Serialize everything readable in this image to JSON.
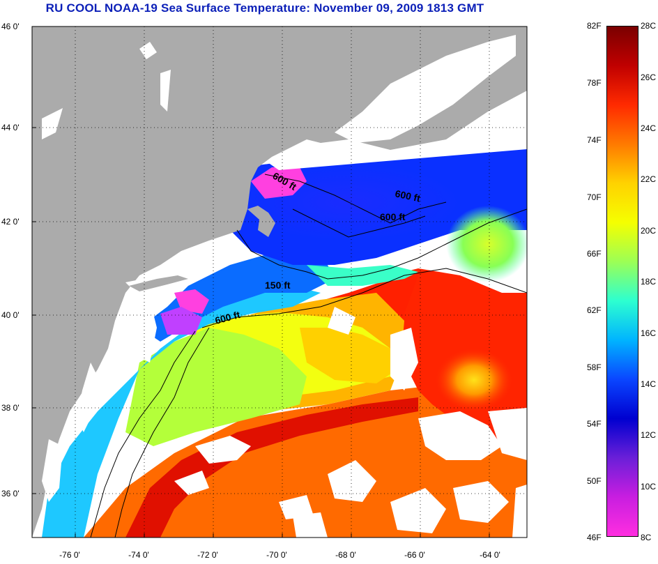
{
  "title": "RU COOL  NOAA-19  Sea Surface Temperature:  November 09, 2009 1813 GMT",
  "latitude_labels": [
    "46 0'",
    "44 0'",
    "42 0'",
    "40 0'",
    "38 0'",
    "36 0'"
  ],
  "longitude_labels": [
    "-76 0'",
    "-74 0'",
    "-72 0'",
    "-70 0'",
    "-68 0'",
    "-66 0'",
    "-64 0'"
  ],
  "isobath_labels": [
    "600 ft",
    "600 ft",
    "600 ft",
    "150 ft",
    "600 ft"
  ],
  "colorbar": {
    "fahrenheit_labels": [
      "82F",
      "78F",
      "74F",
      "70F",
      "66F",
      "62F",
      "58F",
      "54F",
      "50F",
      "46F"
    ],
    "celsius_labels": [
      "28C",
      "26C",
      "24C",
      "22C",
      "20C",
      "18C",
      "16C",
      "14C",
      "12C",
      "10C",
      "8C"
    ],
    "gradient_stops": [
      "#7a0000",
      "#c00000",
      "#ff2a00",
      "#ff7a00",
      "#ffd200",
      "#f5ff00",
      "#9cff55",
      "#2dffd0",
      "#00b4ff",
      "#0a46ff",
      "#0000d0",
      "#6a1fd8",
      "#c81ee0",
      "#ff2ee0"
    ]
  },
  "colors": {
    "land": "#ababab",
    "cloud": "#ffffff",
    "title": "#0b1fb8"
  }
}
